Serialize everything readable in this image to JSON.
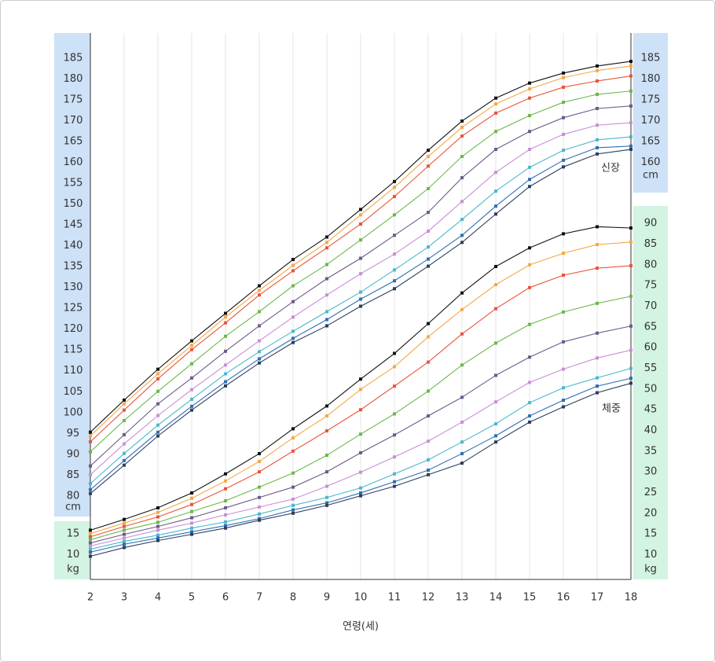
{
  "chart_data": {
    "type": "line",
    "x": [
      2,
      3,
      4,
      5,
      6,
      7,
      8,
      9,
      10,
      11,
      12,
      13,
      14,
      15,
      16,
      17,
      18
    ],
    "xlim": [
      2,
      18
    ],
    "xlabel": "연령(세)",
    "grid": true,
    "height": {
      "label": "신장",
      "unit": "cm",
      "ylim": [
        60,
        191
      ],
      "left_ticks": [
        80,
        85,
        90,
        95,
        100,
        105,
        110,
        115,
        120,
        125,
        130,
        135,
        140,
        145,
        150,
        155,
        160,
        165,
        170,
        175,
        180,
        185
      ],
      "right_ticks": [
        160,
        165,
        170,
        175,
        180,
        185
      ],
      "series": [
        {
          "color": "#111111",
          "values": [
            95.3,
            103.0,
            110.4,
            117.2,
            123.8,
            130.4,
            136.7,
            142.1,
            148.7,
            155.4,
            162.9,
            169.9,
            175.4,
            179.0,
            181.4,
            183.1,
            184.2
          ]
        },
        {
          "color": "#f4a848",
          "values": [
            94.4,
            102.1,
            109.3,
            116.1,
            122.9,
            129.3,
            135.3,
            140.8,
            147.4,
            154.0,
            161.4,
            168.4,
            174.0,
            177.6,
            180.3,
            182.0,
            183.1
          ]
        },
        {
          "color": "#e8553c",
          "values": [
            93.0,
            100.6,
            108.1,
            115.1,
            121.5,
            128.2,
            134.0,
            139.5,
            145.2,
            151.8,
            159.1,
            166.3,
            171.8,
            175.4,
            178.0,
            179.5,
            180.7
          ]
        },
        {
          "color": "#6cb84a",
          "values": [
            90.6,
            98.1,
            105.1,
            111.7,
            118.3,
            124.2,
            130.4,
            135.5,
            141.4,
            147.4,
            153.7,
            161.4,
            167.4,
            171.2,
            174.4,
            176.3,
            177.1
          ]
        },
        {
          "color": "#6b5a8a",
          "values": [
            87.2,
            94.7,
            102.1,
            108.3,
            114.7,
            120.8,
            126.6,
            132.1,
            137.0,
            142.5,
            148.0,
            156.3,
            163.1,
            167.4,
            170.7,
            172.9,
            173.5
          ]
        },
        {
          "color": "#c98ed6",
          "values": [
            85.1,
            92.5,
            99.3,
            105.5,
            111.4,
            117.2,
            122.9,
            128.2,
            133.3,
            138.0,
            143.5,
            150.6,
            157.6,
            163.1,
            166.7,
            168.9,
            169.5
          ]
        },
        {
          "color": "#4ab8cc",
          "values": [
            83.0,
            90.2,
            97.0,
            103.2,
            109.3,
            114.6,
            119.5,
            124.2,
            128.9,
            134.2,
            139.7,
            146.3,
            153.1,
            158.8,
            162.9,
            165.4,
            166.1
          ]
        },
        {
          "color": "#2e6fb5",
          "values": [
            81.5,
            88.5,
            95.3,
            101.5,
            107.4,
            112.9,
            117.8,
            122.3,
            127.2,
            131.6,
            136.8,
            142.5,
            149.5,
            155.9,
            160.5,
            163.5,
            163.9
          ]
        },
        {
          "color": "#2d3e5c",
          "values": [
            80.6,
            87.4,
            94.4,
            100.6,
            106.4,
            111.9,
            116.8,
            120.8,
            125.5,
            129.7,
            135.1,
            140.8,
            147.6,
            154.2,
            158.9,
            162.0,
            163.1
          ]
        }
      ]
    },
    "weight": {
      "label": "체중",
      "unit": "kg",
      "ylim": [
        4,
        136
      ],
      "left_ticks": [
        10,
        15
      ],
      "right_ticks": [
        10,
        15,
        20,
        25,
        30,
        35,
        40,
        45,
        50,
        55,
        60,
        65,
        70,
        75,
        80,
        85,
        90
      ],
      "series": [
        {
          "color": "#111111",
          "values": [
            15.9,
            18.5,
            21.3,
            24.9,
            29.5,
            34.4,
            40.4,
            45.9,
            52.4,
            58.6,
            65.8,
            73.2,
            79.6,
            84.1,
            87.5,
            89.2,
            88.9
          ]
        },
        {
          "color": "#f4a848",
          "values": [
            15.1,
            17.6,
            20.2,
            23.6,
            27.8,
            32.5,
            38.2,
            43.5,
            49.9,
            55.4,
            62.6,
            69.2,
            75.2,
            80.0,
            82.8,
            84.9,
            85.5
          ]
        },
        {
          "color": "#e8553c",
          "values": [
            14.3,
            16.8,
            19.1,
            22.1,
            25.9,
            30.0,
            35.0,
            39.9,
            45.0,
            50.7,
            56.5,
            63.3,
            69.4,
            74.5,
            77.5,
            79.2,
            79.8
          ]
        },
        {
          "color": "#6cb84a",
          "values": [
            13.6,
            15.9,
            17.8,
            20.4,
            23.0,
            26.3,
            29.7,
            34.0,
            39.1,
            44.0,
            49.5,
            55.8,
            61.1,
            65.6,
            68.6,
            70.7,
            72.4
          ]
        },
        {
          "color": "#6b5a8a",
          "values": [
            12.8,
            14.9,
            16.8,
            18.9,
            21.3,
            23.8,
            26.3,
            30.0,
            34.6,
            38.9,
            43.5,
            48.0,
            53.3,
            57.7,
            61.4,
            63.5,
            65.2
          ]
        },
        {
          "color": "#c98ed6",
          "values": [
            12.1,
            14.0,
            15.9,
            17.6,
            19.6,
            21.5,
            23.4,
            26.5,
            29.9,
            33.6,
            37.4,
            42.0,
            46.9,
            51.6,
            54.8,
            57.5,
            59.4
          ]
        },
        {
          "color": "#4ab8cc",
          "values": [
            11.3,
            13.2,
            14.7,
            16.4,
            17.9,
            19.8,
            21.9,
            23.8,
            26.1,
            29.5,
            32.9,
            37.2,
            41.6,
            46.7,
            50.3,
            52.7,
            55.0
          ]
        },
        {
          "color": "#2e6fb5",
          "values": [
            10.6,
            12.5,
            14.0,
            15.5,
            17.0,
            18.7,
            20.8,
            22.5,
            24.9,
            27.6,
            30.4,
            34.4,
            38.7,
            43.5,
            47.3,
            50.7,
            52.6
          ]
        },
        {
          "color": "#2d3e5c",
          "values": [
            9.6,
            11.7,
            13.4,
            14.9,
            16.4,
            18.3,
            20.0,
            21.9,
            24.2,
            26.5,
            29.3,
            32.1,
            37.2,
            42.0,
            45.7,
            49.1,
            51.4
          ]
        }
      ]
    }
  }
}
